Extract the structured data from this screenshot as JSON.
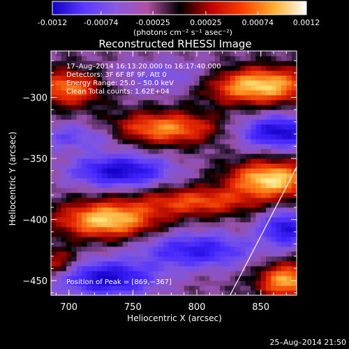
{
  "chart_data": {
    "type": "heatmap",
    "title": "Reconstructed RHESSI Image",
    "colorbar": {
      "ticks": [
        "-0.0012",
        "-0.00074",
        "-0.00025",
        "0.00025",
        "0.00074",
        "0.0012"
      ],
      "tick_values": [
        -0.0012,
        -0.00074,
        -0.00025,
        0.00025,
        0.00074,
        0.0012
      ],
      "range": [
        -0.0012,
        0.0012
      ],
      "label": "(photons cm⁻² s⁻¹ asec⁻²)",
      "colors": [
        "#1400c8",
        "#5a3aff",
        "#8a5ae0",
        "#b050a0",
        "#000000",
        "#c00000",
        "#ff4000",
        "#ffb030",
        "#ffffff"
      ]
    },
    "xlabel": "Heliocentric X (arcsec)",
    "ylabel": "Heliocentric Y (arcsec)",
    "xlim": [
      686,
      878
    ],
    "ylim": [
      -462,
      -262
    ],
    "xticks": [
      700,
      750,
      800,
      850
    ],
    "xtick_labels": [
      "700",
      "750",
      "800",
      "850"
    ],
    "yticks": [
      -300,
      -350,
      -400,
      -450
    ],
    "ytick_labels": [
      "−300",
      "−350",
      "−400",
      "−450"
    ],
    "annotations": [
      "17–Aug–2014 16:13:20.000 to 16:17:40.000",
      "Detectors: 3F 6F 8F 9F, Att 0",
      "Energy Range: 25.0 – 50.0 keV",
      "Clean     Total counts: 1.62E+04"
    ],
    "peak_label": "Position of Peak = [869,−367]",
    "peak": [
      869,
      -367
    ],
    "limb_line": {
      "x": [
        826,
        878
      ],
      "y": [
        -462,
        -357
      ]
    },
    "field": [
      {
        "x": 848,
        "y": -290,
        "v": 1.2,
        "sx": 28,
        "sy": 10
      },
      {
        "x": 775,
        "y": -325,
        "v": 0.9,
        "sx": 28,
        "sy": 9
      },
      {
        "x": 700,
        "y": -292,
        "v": 0.85,
        "sx": 18,
        "sy": 10
      },
      {
        "x": 780,
        "y": -283,
        "v": -0.35,
        "sx": 35,
        "sy": 10
      },
      {
        "x": 705,
        "y": -332,
        "v": -0.45,
        "sx": 25,
        "sy": 8
      },
      {
        "x": 865,
        "y": -328,
        "v": -1.0,
        "sx": 22,
        "sy": 9
      },
      {
        "x": 740,
        "y": -360,
        "v": -1.0,
        "sx": 26,
        "sy": 9
      },
      {
        "x": 858,
        "y": -367,
        "v": 1.2,
        "sx": 22,
        "sy": 10
      },
      {
        "x": 800,
        "y": -385,
        "v": 0.7,
        "sx": 32,
        "sy": 8
      },
      {
        "x": 730,
        "y": -400,
        "v": 1.15,
        "sx": 26,
        "sy": 10
      },
      {
        "x": 800,
        "y": -425,
        "v": -0.8,
        "sx": 30,
        "sy": 10
      },
      {
        "x": 870,
        "y": -407,
        "v": -0.9,
        "sx": 14,
        "sy": 10
      },
      {
        "x": 730,
        "y": -448,
        "v": -1.0,
        "sx": 26,
        "sy": 10
      },
      {
        "x": 870,
        "y": -450,
        "v": 1.0,
        "sx": 15,
        "sy": 10
      },
      {
        "x": 690,
        "y": -435,
        "v": 0.5,
        "sx": 12,
        "sy": 8
      }
    ]
  },
  "footer": {
    "timestamp": "25–Aug–2014 21:50"
  }
}
